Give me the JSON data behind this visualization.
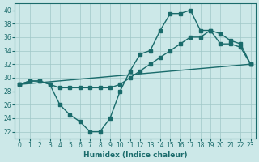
{
  "title": "",
  "xlabel": "Humidex (Indice chaleur)",
  "ylabel": "",
  "bg_color": "#cce8e8",
  "grid_color": "#a0c8c8",
  "line_color": "#1a6b6b",
  "xlim": [
    -0.5,
    23.5
  ],
  "ylim": [
    21,
    41
  ],
  "yticks": [
    22,
    24,
    26,
    28,
    30,
    32,
    34,
    36,
    38,
    40
  ],
  "xticks": [
    0,
    1,
    2,
    3,
    4,
    5,
    6,
    7,
    8,
    9,
    10,
    11,
    12,
    13,
    14,
    15,
    16,
    17,
    18,
    19,
    20,
    21,
    22,
    23
  ],
  "line1_x": [
    0,
    1,
    2,
    3,
    4,
    5,
    6,
    7,
    8,
    9,
    10,
    11,
    12,
    13,
    14,
    15,
    16,
    17,
    18,
    19,
    20,
    21,
    22,
    23
  ],
  "line1_y": [
    29,
    29.5,
    29.5,
    29,
    26,
    24.5,
    23.5,
    22,
    22,
    24,
    28,
    31,
    33.5,
    34,
    37,
    39.5,
    39.5,
    40,
    37,
    37,
    35,
    35,
    34.5,
    32
  ],
  "line2_x": [
    0,
    1,
    2,
    3,
    4,
    5,
    6,
    7,
    8,
    9,
    10,
    11,
    12,
    13,
    14,
    15,
    16,
    17,
    18,
    19,
    20,
    21,
    22,
    23
  ],
  "line2_y": [
    29,
    29.5,
    29.5,
    29,
    28.5,
    28.5,
    28.5,
    28.5,
    28.5,
    28.5,
    29,
    30,
    31,
    32,
    33,
    34,
    35,
    36,
    36,
    37,
    36.5,
    35.5,
    35,
    32
  ],
  "line3_x": [
    0,
    23
  ],
  "line3_y": [
    29,
    32
  ]
}
